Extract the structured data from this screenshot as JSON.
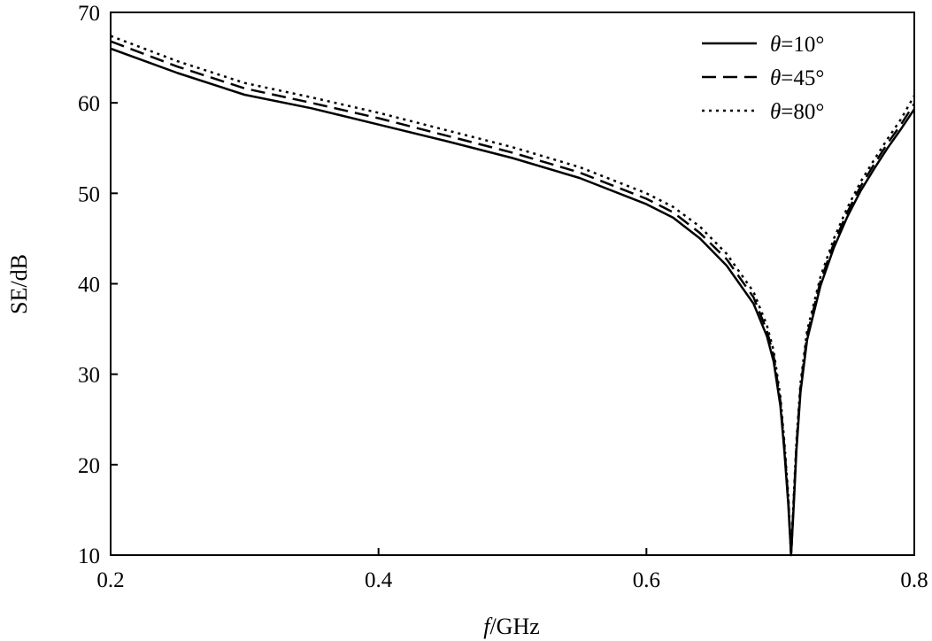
{
  "chart_data": {
    "type": "line",
    "title": "",
    "xlabel_var": "f",
    "xlabel_unit": "/GHz",
    "ylabel": "SE/dB",
    "xlim": [
      0.2,
      0.8
    ],
    "ylim": [
      10,
      70
    ],
    "xticks": [
      "0.2",
      "0.4",
      "0.6",
      "0.8"
    ],
    "yticks": [
      "10",
      "20",
      "30",
      "40",
      "50",
      "60",
      "70"
    ],
    "grid": false,
    "legend_position": "top-right",
    "legend_var": "θ",
    "series": [
      {
        "name": "=10°",
        "style": "solid",
        "x": [
          0.2,
          0.25,
          0.3,
          0.35,
          0.4,
          0.45,
          0.5,
          0.55,
          0.6,
          0.62,
          0.64,
          0.66,
          0.68,
          0.69,
          0.695,
          0.7,
          0.703,
          0.706,
          0.708,
          0.71,
          0.712,
          0.715,
          0.72,
          0.73,
          0.74,
          0.75,
          0.76,
          0.77,
          0.78,
          0.79,
          0.8
        ],
        "y": [
          66.0,
          63.3,
          60.9,
          59.4,
          57.6,
          55.8,
          53.9,
          51.7,
          48.8,
          47.3,
          45.0,
          42.0,
          37.8,
          34.2,
          31.4,
          26.5,
          21.5,
          15.5,
          10.0,
          15.5,
          21.5,
          28.0,
          33.8,
          39.8,
          44.0,
          47.4,
          50.3,
          52.7,
          55.0,
          57.1,
          59.3
        ]
      },
      {
        "name": "=45°",
        "style": "dashed",
        "x": [
          0.2,
          0.25,
          0.3,
          0.35,
          0.4,
          0.45,
          0.5,
          0.55,
          0.6,
          0.62,
          0.64,
          0.66,
          0.68,
          0.69,
          0.695,
          0.7,
          0.703,
          0.706,
          0.708,
          0.71,
          0.712,
          0.715,
          0.72,
          0.73,
          0.74,
          0.75,
          0.76,
          0.77,
          0.78,
          0.79,
          0.8
        ],
        "y": [
          66.8,
          64.0,
          61.6,
          60.0,
          58.3,
          56.4,
          54.5,
          52.3,
          49.4,
          47.9,
          45.6,
          42.7,
          38.5,
          34.8,
          32.0,
          27.0,
          22.0,
          16.0,
          10.0,
          16.0,
          22.0,
          28.5,
          34.3,
          40.3,
          44.5,
          47.9,
          50.8,
          53.2,
          55.5,
          57.6,
          59.9
        ]
      },
      {
        "name": "=80°",
        "style": "dotted",
        "x": [
          0.2,
          0.25,
          0.3,
          0.35,
          0.4,
          0.45,
          0.5,
          0.55,
          0.6,
          0.62,
          0.64,
          0.66,
          0.68,
          0.69,
          0.695,
          0.7,
          0.703,
          0.706,
          0.708,
          0.71,
          0.712,
          0.715,
          0.72,
          0.73,
          0.74,
          0.75,
          0.76,
          0.77,
          0.78,
          0.79,
          0.8
        ],
        "y": [
          67.4,
          64.6,
          62.2,
          60.6,
          58.9,
          57.0,
          55.1,
          52.9,
          50.0,
          48.5,
          46.3,
          43.3,
          39.1,
          35.4,
          32.6,
          27.5,
          22.5,
          16.5,
          10.0,
          16.5,
          22.5,
          29.0,
          34.8,
          40.8,
          45.0,
          48.4,
          51.3,
          53.7,
          56.0,
          58.2,
          60.8
        ]
      }
    ]
  }
}
